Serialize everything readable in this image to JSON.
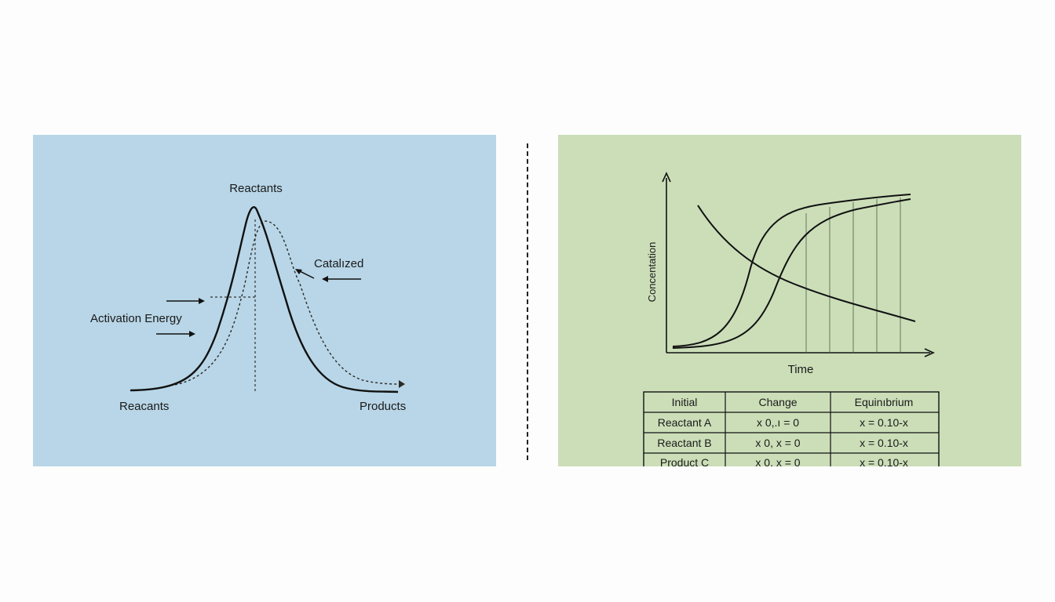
{
  "colors": {
    "left_panel_bg": "#b8d6e7",
    "right_panel_bg": "#cbdeb8",
    "ink": "#1a1a1a",
    "page_bg": "#fdfdfd"
  },
  "energy_diagram": {
    "peak_label": "Reactants",
    "catalyzed_label": "Catalızed",
    "activation_label": "Activation Energy",
    "reactants_label": "Reacants",
    "products_label": "Products"
  },
  "concentration_chart": {
    "ylabel": "Concentation",
    "xlabel": "Time"
  },
  "ice_table": {
    "headers": [
      "Initial",
      "Change",
      "Equinıbrium"
    ],
    "rows": [
      [
        "Reactant A",
        "x 0,.ı = 0",
        "x = 0.10-x"
      ],
      [
        "Reactant B",
        "x 0, x = 0",
        "x = 0.10-x"
      ],
      [
        "Product C",
        "x 0, x = 0",
        "x = 0.10-x"
      ]
    ]
  }
}
